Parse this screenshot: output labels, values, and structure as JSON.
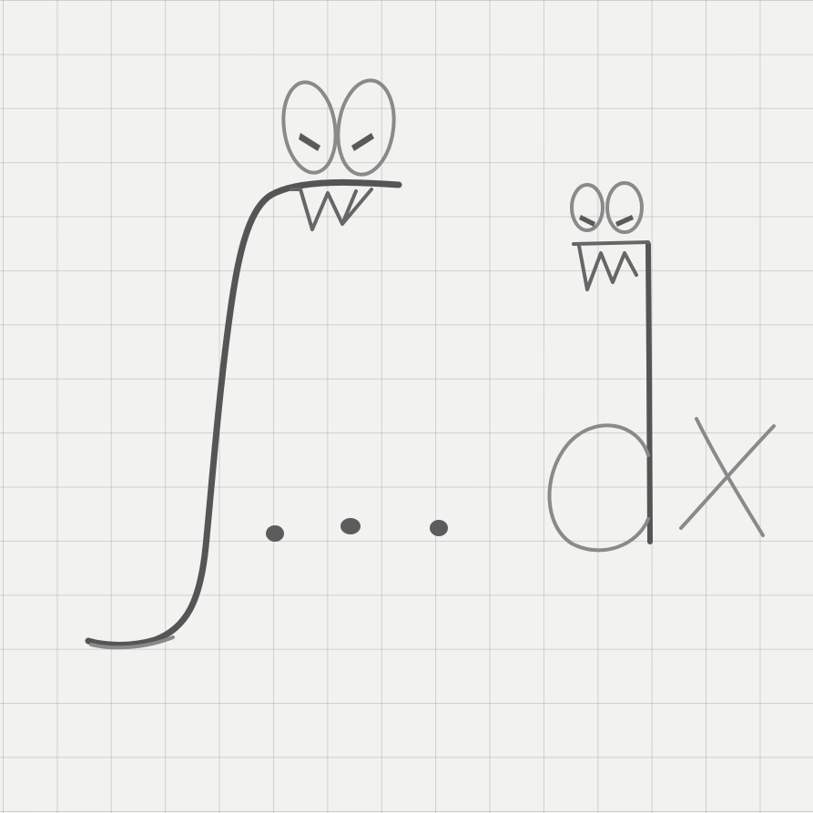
{
  "drawing": {
    "medium": "pencil",
    "paper": "graph-paper",
    "grid_color": "#b4b4b4",
    "paper_color": "#f2f2f0",
    "pencil_color": "#666666",
    "symbols": [
      "integral-sign",
      "ellipsis",
      "dx"
    ],
    "characters": [
      "integral-monster",
      "d-monster"
    ],
    "dx_text": "dx"
  }
}
